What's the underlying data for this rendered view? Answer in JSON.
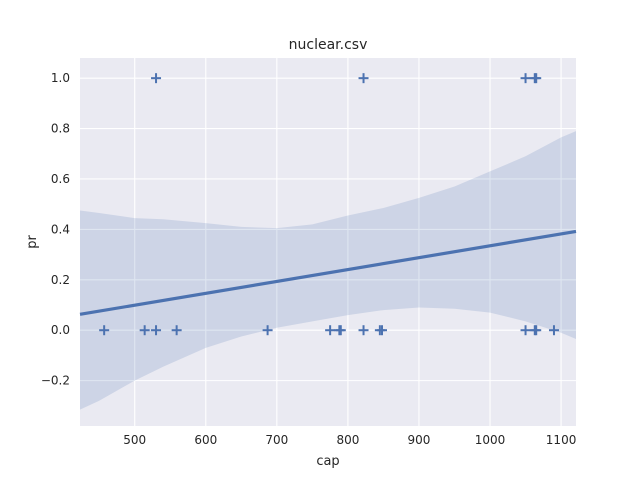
{
  "chart_data": {
    "type": "scatter",
    "title": "nuclear.csv",
    "xlabel": "cap",
    "ylabel": "pr",
    "xlim": [
      423,
      1121
    ],
    "ylim": [
      -0.38,
      1.08
    ],
    "x_ticks": [
      500,
      600,
      700,
      800,
      900,
      1000,
      1100
    ],
    "y_ticks": [
      -0.2,
      0.0,
      0.2,
      0.4,
      0.6,
      0.8,
      1.0
    ],
    "x_tick_labels": [
      "500",
      "600",
      "700",
      "800",
      "900",
      "1000",
      "1100"
    ],
    "y_tick_labels": [
      "−0.2",
      "0.0",
      "0.2",
      "0.4",
      "0.6",
      "0.8",
      "1.0"
    ],
    "grid": true,
    "marker": "+",
    "points": [
      {
        "x": 530,
        "y": 1
      },
      {
        "x": 822,
        "y": 1
      },
      {
        "x": 1050,
        "y": 1
      },
      {
        "x": 1063,
        "y": 1
      },
      {
        "x": 1065,
        "y": 1
      },
      {
        "x": 457,
        "y": 0
      },
      {
        "x": 514,
        "y": 0
      },
      {
        "x": 530,
        "y": 0
      },
      {
        "x": 559,
        "y": 0
      },
      {
        "x": 687,
        "y": 0
      },
      {
        "x": 775,
        "y": 0
      },
      {
        "x": 788,
        "y": 0
      },
      {
        "x": 790,
        "y": 0
      },
      {
        "x": 822,
        "y": 0
      },
      {
        "x": 845,
        "y": 0
      },
      {
        "x": 848,
        "y": 0
      },
      {
        "x": 1050,
        "y": 0
      },
      {
        "x": 1063,
        "y": 0
      },
      {
        "x": 1065,
        "y": 0
      },
      {
        "x": 1090,
        "y": 0
      }
    ],
    "regression_line": {
      "x": [
        423,
        1121
      ],
      "y": [
        0.063,
        0.392
      ]
    },
    "confidence_band": {
      "x": [
        423,
        450,
        500,
        540,
        600,
        650,
        700,
        750,
        800,
        850,
        900,
        950,
        1000,
        1050,
        1100,
        1121
      ],
      "upper": [
        0.475,
        0.465,
        0.445,
        0.44,
        0.425,
        0.41,
        0.405,
        0.42,
        0.455,
        0.485,
        0.525,
        0.57,
        0.63,
        0.69,
        0.765,
        0.79
      ],
      "lower": [
        -0.315,
        -0.28,
        -0.2,
        -0.145,
        -0.07,
        -0.025,
        0.01,
        0.035,
        0.06,
        0.08,
        0.09,
        0.085,
        0.07,
        0.035,
        -0.01,
        -0.035
      ]
    },
    "colors": {
      "background": "#EAEAF2",
      "grid": "#FFFFFF",
      "series": "#4C72B0",
      "band": "#C8D2E8"
    }
  }
}
